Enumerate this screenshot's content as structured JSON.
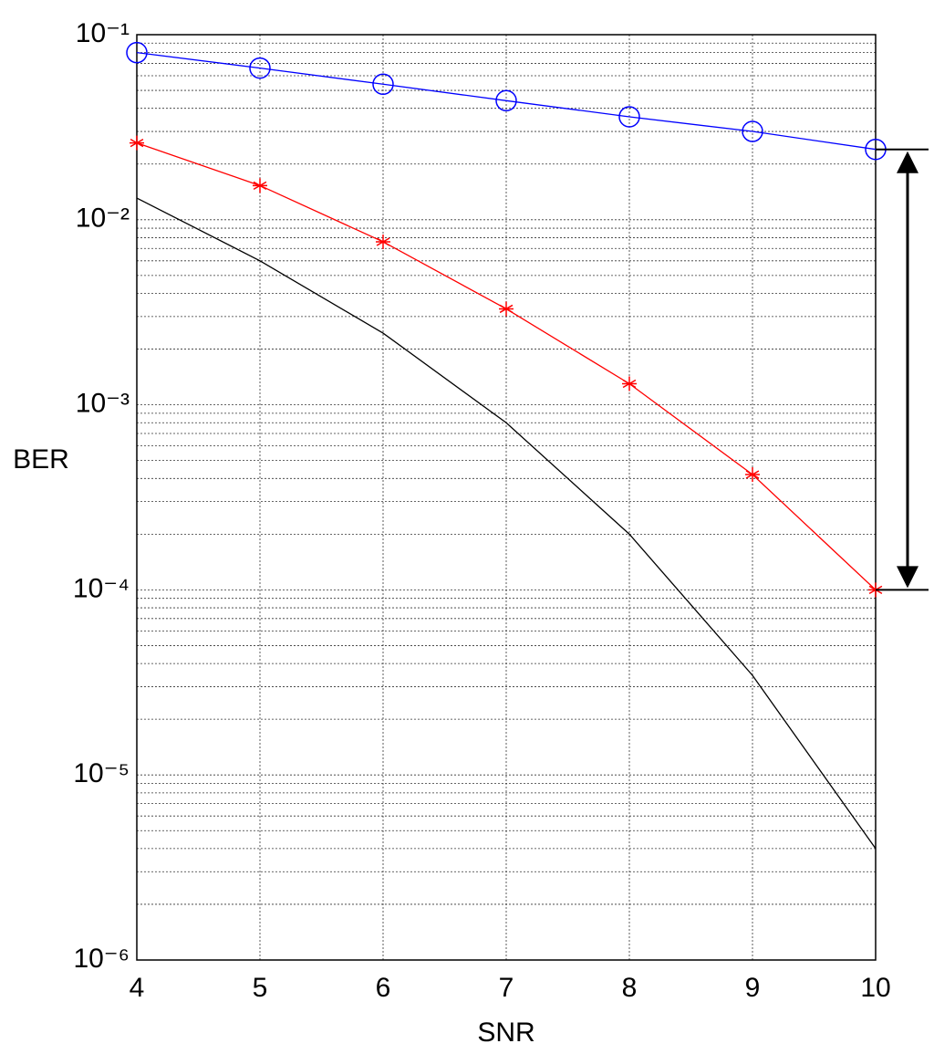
{
  "chart_data": {
    "type": "line",
    "log_y": true,
    "grid": true,
    "minor_grid": true,
    "xlabel": "SNR",
    "ylabel": "BER",
    "x": [
      4,
      5,
      6,
      7,
      8,
      9,
      10
    ],
    "series": [
      {
        "color": "#0000ff",
        "marker": "circle",
        "values": [
          0.08,
          0.066,
          0.054,
          0.044,
          0.036,
          0.03,
          0.024
        ]
      },
      {
        "color": "#ff0000",
        "marker": "star",
        "values": [
          0.026,
          0.0153,
          0.0076,
          0.0033,
          0.0013,
          0.00042,
          0.0001
        ]
      },
      {
        "color": "#000000",
        "marker": "none",
        "values": [
          0.0131,
          0.006,
          0.00244,
          0.0008,
          0.0002,
          3.45e-05,
          4e-06
        ]
      }
    ],
    "xlim": [
      4,
      10
    ],
    "xticks": [
      4,
      5,
      6,
      7,
      8,
      9,
      10
    ],
    "ylim": [
      1e-06,
      0.1
    ],
    "yticks": [
      {
        "value": 1e-06,
        "label": "10⁻⁶"
      },
      {
        "value": 1e-05,
        "label": "10⁻⁵"
      },
      {
        "value": 0.0001,
        "label": "10⁻⁴"
      },
      {
        "value": 0.001,
        "label": "10⁻³"
      },
      {
        "value": 0.01,
        "label": "10⁻²"
      },
      {
        "value": 0.1,
        "label": "10⁻¹"
      }
    ]
  }
}
